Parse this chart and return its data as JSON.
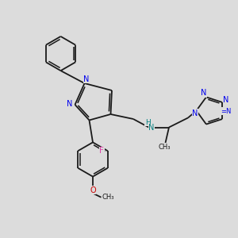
{
  "background_color": "#dcdcdc",
  "bond_color": "#1a1a1a",
  "nitrogen_color": "#0000ee",
  "fluorine_color": "#e040aa",
  "oxygen_color": "#cc0000",
  "nh_color": "#008080",
  "figsize": [
    3.0,
    3.0
  ],
  "dpi": 100,
  "xlim": [
    0,
    10
  ],
  "ylim": [
    0,
    10
  ]
}
